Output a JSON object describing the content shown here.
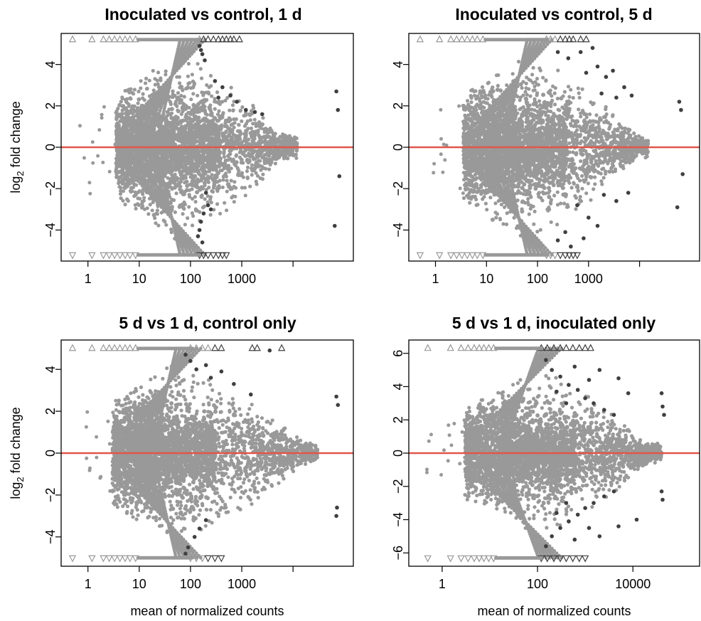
{
  "figure": {
    "colors": {
      "nonsignificant": "#999999",
      "significant": "#3f3f3f",
      "reference_line": "#e0564b",
      "background": "#ffffff"
    }
  },
  "chart_data": [
    {
      "type": "scatter",
      "title": "Inoculated vs control, 1 d",
      "xlabel": "",
      "ylabel": "log2 fold change",
      "x_scale": "log10",
      "xlim": [
        0.3,
        150000
      ],
      "ylim": [
        -5.5,
        5.5
      ],
      "x_ticks": [
        1,
        10,
        100,
        1000,
        10000
      ],
      "x_tick_labels": [
        "1",
        "10",
        "100",
        "1000",
        ""
      ],
      "y_ticks": [
        -4,
        -2,
        0,
        2,
        4
      ],
      "y_tick_labels": [
        "−4",
        "−2",
        "0",
        "2",
        "4"
      ],
      "y_clip": 5.2,
      "reference_line_y": 0,
      "cloud": {
        "center_x": 60,
        "left_edge_x": 3.5,
        "right_edge_x": 12000,
        "max_abs_y": 4.6
      },
      "significant_points": [
        {
          "x": 150,
          "y": 4.9
        },
        {
          "x": 170,
          "y": 4.5
        },
        {
          "x": 190,
          "y": 4.2
        },
        {
          "x": 160,
          "y": 4.7
        },
        {
          "x": 300,
          "y": 3.2
        },
        {
          "x": 420,
          "y": 2.9
        },
        {
          "x": 350,
          "y": 2.4
        },
        {
          "x": 600,
          "y": 2.5
        },
        {
          "x": 800,
          "y": 2.2
        },
        {
          "x": 1200,
          "y": 1.8
        },
        {
          "x": 1800,
          "y": 1.7
        },
        {
          "x": 2500,
          "y": 1.6
        },
        {
          "x": 70000,
          "y": 2.7
        },
        {
          "x": 75000,
          "y": 1.8
        },
        {
          "x": 80000,
          "y": -1.4
        },
        {
          "x": 65000,
          "y": -3.8
        },
        {
          "x": 200,
          "y": -2.2
        },
        {
          "x": 220,
          "y": -2.8
        },
        {
          "x": 180,
          "y": -3.2
        },
        {
          "x": 160,
          "y": -3.6
        },
        {
          "x": 150,
          "y": -4.0
        },
        {
          "x": 140,
          "y": -4.3
        },
        {
          "x": 170,
          "y": -4.6
        },
        {
          "x": 250,
          "y": -3.0
        }
      ],
      "clipped_markers": {
        "top_x": [
          0.5,
          1.2,
          2.0,
          2.6,
          3.3,
          4.2,
          5.3,
          6.6,
          8.5,
          150,
          180,
          220,
          280,
          350,
          420,
          500,
          600,
          700,
          900
        ],
        "top_significant_count": 9,
        "bottom_x": [
          0.5,
          1.2,
          2.0,
          2.6,
          3.3,
          4.2,
          5.3,
          6.6,
          8.5,
          150,
          180,
          220,
          280,
          350,
          420,
          500
        ],
        "bottom_significant_count": 7
      }
    },
    {
      "type": "scatter",
      "title": "Inoculated vs control, 5 d",
      "xlabel": "",
      "ylabel": "",
      "x_scale": "log10",
      "xlim": [
        0.3,
        150000
      ],
      "ylim": [
        -5.5,
        5.5
      ],
      "x_ticks": [
        1,
        10,
        100,
        1000,
        10000
      ],
      "x_tick_labels": [
        "1",
        "10",
        "100",
        "1000",
        ""
      ],
      "y_ticks": [
        -4,
        -2,
        0,
        2,
        4
      ],
      "y_tick_labels": [
        "−4",
        "−2",
        "0",
        "2",
        "4"
      ],
      "y_clip": 5.2,
      "reference_line_y": 0,
      "cloud": {
        "center_x": 60,
        "left_edge_x": 3.5,
        "right_edge_x": 15000,
        "max_abs_y": 4.6
      },
      "significant_points": [
        {
          "x": 250,
          "y": 4.6
        },
        {
          "x": 400,
          "y": 4.3
        },
        {
          "x": 700,
          "y": 4.6
        },
        {
          "x": 1200,
          "y": 4.8
        },
        {
          "x": 900,
          "y": 3.6
        },
        {
          "x": 1500,
          "y": 3.9
        },
        {
          "x": 2200,
          "y": 3.4
        },
        {
          "x": 3000,
          "y": 3.7
        },
        {
          "x": 5000,
          "y": 2.9
        },
        {
          "x": 1800,
          "y": 2.6
        },
        {
          "x": 3500,
          "y": 2.4
        },
        {
          "x": 7000,
          "y": 2.5
        },
        {
          "x": 60000,
          "y": 2.2
        },
        {
          "x": 65000,
          "y": 1.8
        },
        {
          "x": 55000,
          "y": -2.9
        },
        {
          "x": 70000,
          "y": -1.3
        },
        {
          "x": 600,
          "y": -2.8
        },
        {
          "x": 1000,
          "y": -3.4
        },
        {
          "x": 2000,
          "y": -2.3
        },
        {
          "x": 3500,
          "y": -2.6
        },
        {
          "x": 6000,
          "y": -2.2
        },
        {
          "x": 350,
          "y": -4.1
        },
        {
          "x": 250,
          "y": -4.5
        },
        {
          "x": 450,
          "y": -4.8
        },
        {
          "x": 800,
          "y": -4.4
        },
        {
          "x": 1500,
          "y": -3.8
        }
      ],
      "clipped_markers": {
        "top_x": [
          0.5,
          1.2,
          2.0,
          2.6,
          3.3,
          4.2,
          5.3,
          6.6,
          8.5,
          150,
          180,
          220,
          280,
          350,
          420,
          500,
          700,
          900
        ],
        "top_significant_count": 6,
        "bottom_x": [
          0.5,
          1.2,
          2.0,
          2.6,
          3.3,
          4.2,
          5.3,
          6.6,
          8.5,
          150,
          180,
          220,
          280,
          350,
          420,
          500,
          600
        ],
        "bottom_significant_count": 5
      }
    },
    {
      "type": "scatter",
      "title": "5 d vs 1 d, control only",
      "xlabel": "mean of normalized counts",
      "ylabel": "log2 fold change",
      "x_scale": "log10",
      "xlim": [
        0.3,
        150000
      ],
      "ylim": [
        -5.4,
        5.4
      ],
      "x_ticks": [
        1,
        10,
        100,
        1000,
        10000
      ],
      "x_tick_labels": [
        "1",
        "10",
        "100",
        "1000",
        ""
      ],
      "y_ticks": [
        -4,
        -2,
        0,
        2,
        4
      ],
      "y_tick_labels": [
        "−4",
        "−2",
        "0",
        "2",
        "4"
      ],
      "y_clip": 5.0,
      "reference_line_y": 0,
      "cloud": {
        "center_x": 50,
        "left_edge_x": 3.0,
        "right_edge_x": 30000,
        "max_abs_y": 4.4
      },
      "significant_points": [
        {
          "x": 80,
          "y": 4.7
        },
        {
          "x": 100,
          "y": 4.4
        },
        {
          "x": 130,
          "y": 4.0
        },
        {
          "x": 200,
          "y": 4.2
        },
        {
          "x": 250,
          "y": 3.6
        },
        {
          "x": 400,
          "y": 3.9
        },
        {
          "x": 700,
          "y": 3.3
        },
        {
          "x": 3500,
          "y": 4.9
        },
        {
          "x": 1500,
          "y": 2.8
        },
        {
          "x": 70000,
          "y": 2.7
        },
        {
          "x": 75000,
          "y": 2.3
        },
        {
          "x": 72000,
          "y": -2.6
        },
        {
          "x": 70000,
          "y": -3.0
        },
        {
          "x": 150,
          "y": -3.6
        },
        {
          "x": 120,
          "y": -4.0
        },
        {
          "x": 90,
          "y": -4.5
        },
        {
          "x": 80,
          "y": -4.8
        },
        {
          "x": 200,
          "y": -3.2
        }
      ],
      "clipped_markers": {
        "top_x": [
          0.5,
          1.2,
          2.0,
          2.6,
          3.3,
          4.2,
          5.3,
          6.6,
          8.5,
          100,
          130,
          170,
          220,
          300,
          400,
          1600,
          2000,
          6000
        ],
        "top_significant_count": 5,
        "bottom_x": [
          0.5,
          1.2,
          2.0,
          2.6,
          3.3,
          4.2,
          5.3,
          6.6,
          8.5,
          100,
          130,
          170,
          220,
          300,
          400
        ],
        "bottom_significant_count": 3
      }
    },
    {
      "type": "scatter",
      "title": "5 d vs 1 d, inoculated only",
      "xlabel": "mean of normalized counts",
      "ylabel": "",
      "x_scale": "log10",
      "xlim": [
        0.2,
        250000
      ],
      "ylim": [
        -6.8,
        6.8
      ],
      "x_ticks": [
        1,
        100,
        10000
      ],
      "x_tick_labels": [
        "1",
        "100",
        "10000"
      ],
      "y_ticks": [
        -6,
        -4,
        -2,
        0,
        2,
        4,
        6
      ],
      "y_tick_labels": [
        "−6",
        "−4",
        "−2",
        "0",
        "2",
        "4",
        "6"
      ],
      "y_clip": 6.3,
      "reference_line_y": 0,
      "cloud": {
        "center_x": 100,
        "left_edge_x": 3.0,
        "right_edge_x": 40000,
        "max_abs_y": 5.0
      },
      "significant_points": [
        {
          "x": 150,
          "y": 5.6
        },
        {
          "x": 200,
          "y": 5.0
        },
        {
          "x": 300,
          "y": 4.6
        },
        {
          "x": 450,
          "y": 4.1
        },
        {
          "x": 700,
          "y": 3.8
        },
        {
          "x": 1000,
          "y": 3.3
        },
        {
          "x": 1500,
          "y": 3.0
        },
        {
          "x": 2500,
          "y": 2.6
        },
        {
          "x": 4000,
          "y": 2.3
        },
        {
          "x": 600,
          "y": 5.2
        },
        {
          "x": 1200,
          "y": 4.4
        },
        {
          "x": 2000,
          "y": 5.0
        },
        {
          "x": 5000,
          "y": 4.5
        },
        {
          "x": 8000,
          "y": 3.6
        },
        {
          "x": 250,
          "y": 3.7
        },
        {
          "x": 400,
          "y": 3.0
        },
        {
          "x": 40000,
          "y": 3.6
        },
        {
          "x": 42000,
          "y": 2.8
        },
        {
          "x": 45000,
          "y": 2.3
        },
        {
          "x": 150,
          "y": -5.6
        },
        {
          "x": 200,
          "y": -5.0
        },
        {
          "x": 300,
          "y": -4.5
        },
        {
          "x": 450,
          "y": -4.1
        },
        {
          "x": 700,
          "y": -3.7
        },
        {
          "x": 1000,
          "y": -3.3
        },
        {
          "x": 1500,
          "y": -3.0
        },
        {
          "x": 2500,
          "y": -2.6
        },
        {
          "x": 4000,
          "y": -2.3
        },
        {
          "x": 600,
          "y": -5.2
        },
        {
          "x": 1200,
          "y": -4.5
        },
        {
          "x": 2000,
          "y": -5.0
        },
        {
          "x": 5000,
          "y": -4.4
        },
        {
          "x": 250,
          "y": -3.6
        },
        {
          "x": 400,
          "y": -3.0
        },
        {
          "x": 12000,
          "y": -4.0
        },
        {
          "x": 40000,
          "y": -2.3
        },
        {
          "x": 42000,
          "y": -2.8
        }
      ],
      "clipped_markers": {
        "top_x": [
          0.5,
          1.5,
          2.5,
          3.5,
          4.7,
          6.0,
          7.5,
          9.5,
          12,
          120,
          160,
          220,
          300,
          400,
          550,
          750,
          1000,
          1300
        ],
        "top_significant_count": 9,
        "bottom_x": [
          0.5,
          1.5,
          2.5,
          3.5,
          4.7,
          6.0,
          7.5,
          9.5,
          12,
          120,
          160,
          220,
          300,
          400,
          550,
          750,
          1000
        ],
        "bottom_significant_count": 8
      }
    }
  ]
}
